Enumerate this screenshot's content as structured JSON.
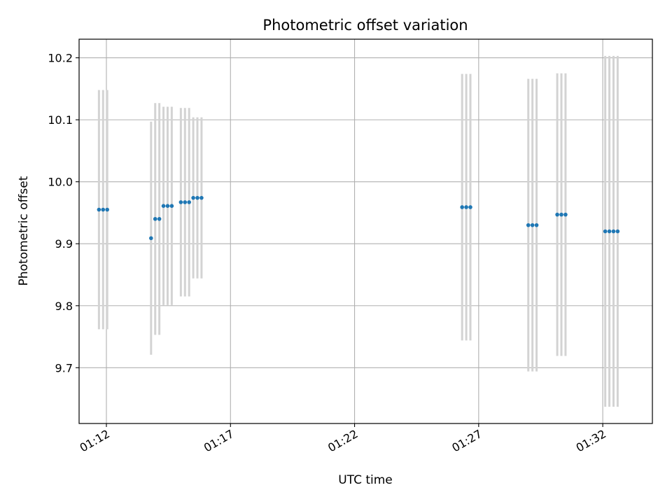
{
  "chart_data": {
    "type": "scatter",
    "title": "Photometric offset variation",
    "xlabel": "UTC time",
    "ylabel": "Photometric offset",
    "x_unit": "time (HH:MM:SS)",
    "xlim": [
      "01:10:54",
      "01:34:00"
    ],
    "ylim": [
      9.61,
      10.23
    ],
    "xticks": [
      "01:12",
      "01:17",
      "01:22",
      "01:27",
      "01:32"
    ],
    "yticks": [
      "9.7",
      "9.8",
      "9.9",
      "10.0",
      "10.1",
      "10.2"
    ],
    "grid": true,
    "legend": "none",
    "colors": {
      "points": "#1f77b4",
      "errorbars": "#d3d3d3",
      "grid": "#b0b0b0"
    },
    "series": [
      {
        "points": [
          {
            "x": "01:11:42",
            "y": 9.955,
            "yerr": 0.193
          },
          {
            "x": "01:11:52",
            "y": 9.955,
            "yerr": 0.193
          },
          {
            "x": "01:12:02",
            "y": 9.955,
            "yerr": 0.193
          },
          {
            "x": "01:13:48",
            "y": 9.909,
            "yerr": 0.188
          },
          {
            "x": "01:13:58",
            "y": 9.94,
            "yerr": 0.187
          },
          {
            "x": "01:14:08",
            "y": 9.94,
            "yerr": 0.187
          },
          {
            "x": "01:14:18",
            "y": 9.961,
            "yerr": 0.16
          },
          {
            "x": "01:14:28",
            "y": 9.961,
            "yerr": 0.16
          },
          {
            "x": "01:14:38",
            "y": 9.961,
            "yerr": 0.16
          },
          {
            "x": "01:15:00",
            "y": 9.967,
            "yerr": 0.152
          },
          {
            "x": "01:15:10",
            "y": 9.967,
            "yerr": 0.152
          },
          {
            "x": "01:15:20",
            "y": 9.967,
            "yerr": 0.152
          },
          {
            "x": "01:15:30",
            "y": 9.974,
            "yerr": 0.13
          },
          {
            "x": "01:15:40",
            "y": 9.974,
            "yerr": 0.13
          },
          {
            "x": "01:15:50",
            "y": 9.974,
            "yerr": 0.13
          },
          {
            "x": "01:26:20",
            "y": 9.959,
            "yerr": 0.215
          },
          {
            "x": "01:26:30",
            "y": 9.959,
            "yerr": 0.215
          },
          {
            "x": "01:26:40",
            "y": 9.959,
            "yerr": 0.215
          },
          {
            "x": "01:29:00",
            "y": 9.93,
            "yerr": 0.236
          },
          {
            "x": "01:29:10",
            "y": 9.93,
            "yerr": 0.236
          },
          {
            "x": "01:29:20",
            "y": 9.93,
            "yerr": 0.236
          },
          {
            "x": "01:30:10",
            "y": 9.947,
            "yerr": 0.228
          },
          {
            "x": "01:30:20",
            "y": 9.947,
            "yerr": 0.228
          },
          {
            "x": "01:30:30",
            "y": 9.947,
            "yerr": 0.228
          },
          {
            "x": "01:32:06",
            "y": 9.92,
            "yerr": 0.283
          },
          {
            "x": "01:32:16",
            "y": 9.92,
            "yerr": 0.283
          },
          {
            "x": "01:32:26",
            "y": 9.92,
            "yerr": 0.283
          },
          {
            "x": "01:32:36",
            "y": 9.92,
            "yerr": 0.283
          }
        ]
      }
    ]
  }
}
